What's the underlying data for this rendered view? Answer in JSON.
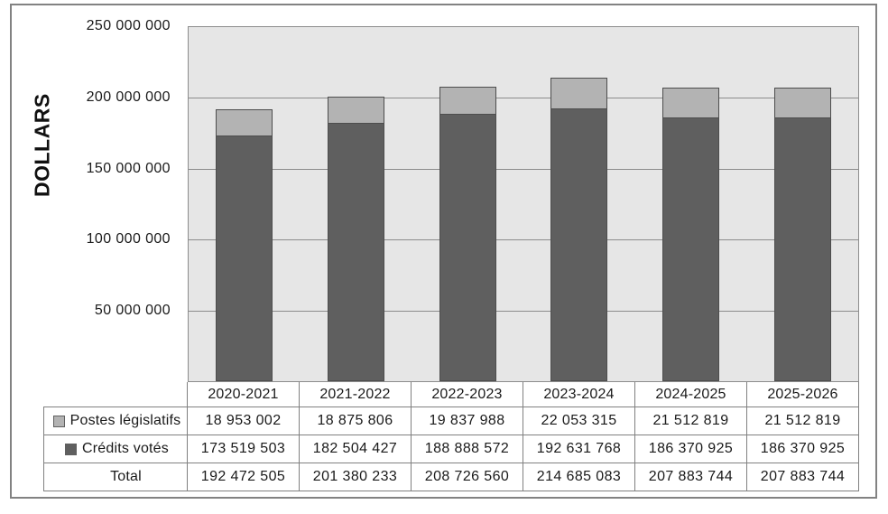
{
  "chart_data": {
    "type": "bar",
    "stacked": true,
    "title": "",
    "ylabel": "DOLLARS",
    "xlabel": "",
    "categories": [
      "2020-2021",
      "2021-2022",
      "2022-2023",
      "2023-2024",
      "2024-2025",
      "2025-2026"
    ],
    "series": [
      {
        "name": "Postes législatifs",
        "color": "#b3b3b3",
        "values": [
          18953002,
          18875806,
          19837988,
          22053315,
          21512819,
          21512819
        ]
      },
      {
        "name": "Crédits votés",
        "color": "#5f5f5f",
        "values": [
          173519503,
          182504427,
          188888572,
          192631768,
          186370925,
          186370925
        ]
      }
    ],
    "totals": {
      "label": "Total",
      "values": [
        192472505,
        201380233,
        208726560,
        214685083,
        207883744,
        207883744
      ]
    },
    "ylim": [
      0,
      250000000
    ],
    "ytick_step": 50000000,
    "ytick_labels": [
      "250 000 000",
      "200 000 000",
      "150 000 000",
      "100 000 000",
      "50 000 000"
    ],
    "grid": true,
    "legend_position": "data-table-row-labels"
  },
  "table": {
    "column_headers": [
      "2020-2021",
      "2021-2022",
      "2022-2023",
      "2023-2024",
      "2024-2025",
      "2025-2026"
    ],
    "rows": [
      {
        "label": "Postes législatifs",
        "swatch_color": "#b3b3b3",
        "cells": [
          "18 953 002",
          "18 875 806",
          "19 837 988",
          "22 053 315",
          "21 512 819",
          "21 512 819"
        ]
      },
      {
        "label": "Crédits votés",
        "swatch_color": "#5f5f5f",
        "cells": [
          "173 519 503",
          "182 504 427",
          "188 888 572",
          "192 631 768",
          "186 370 925",
          "186 370 925"
        ]
      },
      {
        "label": "Total",
        "swatch_color": null,
        "cells": [
          "192 472 505",
          "201 380 233",
          "208 726 560",
          "214 685 083",
          "207 883 744",
          "207 883 744"
        ]
      }
    ]
  },
  "colors": {
    "plot_background": "#e6e6e6",
    "bar_dark": "#5f5f5f",
    "bar_light": "#b3b3b3",
    "bar_border": "#4d4d4d",
    "gridline": "#8c8c8c",
    "table_border": "#808080",
    "frame_border": "#828282",
    "text": "#1a1a1a"
  }
}
